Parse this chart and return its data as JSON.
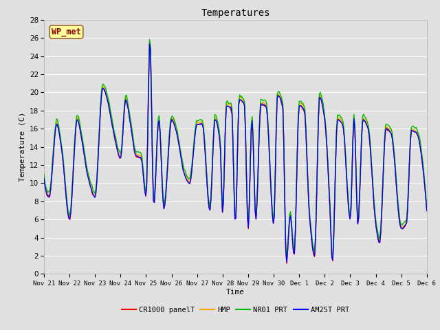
{
  "title": "Temperatures",
  "ylabel": "Temperature (C)",
  "xlabel": "Time",
  "annotation_text": "WP_met",
  "annotation_color": "#8B0000",
  "annotation_bg": "#FFFF99",
  "annotation_border": "#8B4513",
  "ylim": [
    0,
    28
  ],
  "yticks": [
    0,
    2,
    4,
    6,
    8,
    10,
    12,
    14,
    16,
    18,
    20,
    22,
    24,
    26,
    28
  ],
  "bg_color": "#E0E0E0",
  "grid_color": "#FFFFFF",
  "series_colors": {
    "CR1000 panelT": "#FF0000",
    "HMP": "#FFA500",
    "NR01 PRT": "#00BB00",
    "AM25T PRT": "#0000FF"
  },
  "line_width": 1.0,
  "x_tick_labels": [
    "Nov 21",
    "Nov 22",
    "Nov 23",
    "Nov 24",
    "Nov 25",
    "Nov 26",
    "Nov 27",
    "Nov 28",
    "Nov 29",
    "Nov 30",
    "Dec 1",
    "Dec 2",
    "Dec 3",
    "Dec 4",
    "Dec 5",
    "Dec 6"
  ],
  "x_tick_positions": [
    0,
    1,
    2,
    3,
    4,
    5,
    6,
    7,
    8,
    9,
    10,
    11,
    12,
    13,
    14,
    15
  ]
}
